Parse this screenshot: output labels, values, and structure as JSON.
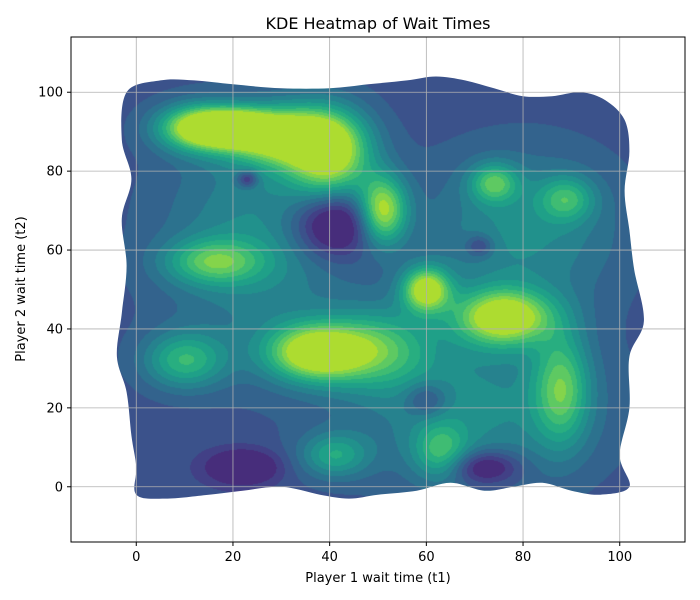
{
  "chart_data": {
    "type": "heatmap",
    "subtype": "kde-filled-contour",
    "title": "KDE Heatmap of Wait Times",
    "xlabel": "Player 1 wait time (t1)",
    "ylabel": "Player 2 wait time (t2)",
    "xlim": [
      -13.5,
      113.5
    ],
    "ylim": [
      -14,
      114
    ],
    "xticks": [
      0,
      20,
      40,
      60,
      80,
      100
    ],
    "yticks": [
      0,
      20,
      40,
      60,
      80,
      100
    ],
    "grid": true,
    "legend": "none",
    "colormap": "viridis",
    "levels": 10,
    "palette": [
      "#472d7b",
      "#424086",
      "#3b528b",
      "#33638d",
      "#2c728e",
      "#26828e",
      "#21918c",
      "#1fa088",
      "#28ae80",
      "#3fbc73",
      "#5ec962",
      "#84d44b",
      "#addc30"
    ],
    "support_outline": [
      [
        -2,
        100
      ],
      [
        5,
        103
      ],
      [
        12,
        103
      ],
      [
        20,
        102
      ],
      [
        30,
        101
      ],
      [
        40,
        101
      ],
      [
        48,
        102
      ],
      [
        56,
        103
      ],
      [
        62,
        104
      ],
      [
        68,
        103
      ],
      [
        74,
        101
      ],
      [
        80,
        99
      ],
      [
        86,
        99
      ],
      [
        92,
        100
      ],
      [
        97,
        98
      ],
      [
        101,
        93
      ],
      [
        102,
        85
      ],
      [
        101,
        75
      ],
      [
        102,
        65
      ],
      [
        103,
        55
      ],
      [
        105,
        42
      ],
      [
        102,
        33
      ],
      [
        102,
        20
      ],
      [
        100,
        8
      ],
      [
        102,
        0
      ],
      [
        96,
        -2
      ],
      [
        90,
        -1
      ],
      [
        84,
        1
      ],
      [
        78,
        0
      ],
      [
        72,
        -1
      ],
      [
        65,
        1
      ],
      [
        58,
        -1
      ],
      [
        50,
        -2
      ],
      [
        44,
        -3
      ],
      [
        38,
        -2
      ],
      [
        30,
        0
      ],
      [
        22,
        -1
      ],
      [
        15,
        -2
      ],
      [
        6,
        -3
      ],
      [
        0,
        -2
      ],
      [
        0,
        5
      ],
      [
        -1,
        13
      ],
      [
        -2,
        24
      ],
      [
        -4,
        33
      ],
      [
        -3,
        44
      ],
      [
        -2,
        56
      ],
      [
        -3,
        68
      ],
      [
        -1,
        78
      ],
      [
        -3,
        88
      ]
    ],
    "density_peaks": [
      {
        "t1": 13,
        "t2": 91,
        "sx": 6,
        "sy": 4,
        "w": 1.0
      },
      {
        "t1": 21,
        "t2": 91,
        "sx": 5,
        "sy": 3,
        "w": 0.8
      },
      {
        "t1": 30,
        "t2": 89,
        "sx": 8,
        "sy": 5,
        "w": 1.0
      },
      {
        "t1": 40,
        "t2": 84,
        "sx": 6,
        "sy": 8,
        "w": 0.9
      },
      {
        "t1": 51,
        "t2": 70,
        "sx": 3.5,
        "sy": 6,
        "w": 0.9
      },
      {
        "t1": 60,
        "t2": 50,
        "sx": 3.5,
        "sy": 4,
        "w": 0.95
      },
      {
        "t1": 76,
        "t2": 43,
        "sx": 7,
        "sy": 5,
        "w": 1.0
      },
      {
        "t1": 37,
        "t2": 34,
        "sx": 7,
        "sy": 5,
        "w": 1.0
      },
      {
        "t1": 74,
        "t2": 77,
        "sx": 3.5,
        "sy": 3.5,
        "w": 0.55
      },
      {
        "t1": 89,
        "t2": 73,
        "sx": 4,
        "sy": 4,
        "w": 0.45
      },
      {
        "t1": 16,
        "t2": 57,
        "sx": 7,
        "sy": 4,
        "w": 0.55
      },
      {
        "t1": 10,
        "t2": 32,
        "sx": 6,
        "sy": 5,
        "w": 0.55
      },
      {
        "t1": 50,
        "t2": 35,
        "sx": 8,
        "sy": 7,
        "w": 0.55
      },
      {
        "t1": 88,
        "t2": 25,
        "sx": 4,
        "sy": 10,
        "w": 0.6
      },
      {
        "t1": 63,
        "t2": 9,
        "sx": 4,
        "sy": 5,
        "w": 0.45
      },
      {
        "t1": 41,
        "t2": 8,
        "sx": 5,
        "sy": 4,
        "w": 0.45
      },
      {
        "t1": 25,
        "t2": 62,
        "sx": 14,
        "sy": 20,
        "w": 0.35
      },
      {
        "t1": 70,
        "t2": 20,
        "sx": 18,
        "sy": 14,
        "w": 0.35
      },
      {
        "t1": 80,
        "t2": 65,
        "sx": 14,
        "sy": 14,
        "w": 0.35
      }
    ],
    "density_holes": [
      {
        "t1": 41,
        "t2": 67,
        "sx": 6,
        "sy": 6,
        "w": 0.6
      },
      {
        "t1": 22,
        "t2": 5,
        "sx": 5,
        "sy": 3,
        "w": 0.45
      },
      {
        "t1": 72,
        "t2": 5,
        "sx": 5,
        "sy": 3,
        "w": 0.45
      },
      {
        "t1": 60,
        "t2": 22,
        "sx": 3,
        "sy": 3,
        "w": 0.3
      },
      {
        "t1": 71,
        "t2": 61,
        "sx": 2,
        "sy": 2,
        "w": 0.3
      },
      {
        "t1": 23,
        "t2": 78,
        "sx": 1.5,
        "sy": 1.5,
        "w": 0.4
      }
    ]
  }
}
